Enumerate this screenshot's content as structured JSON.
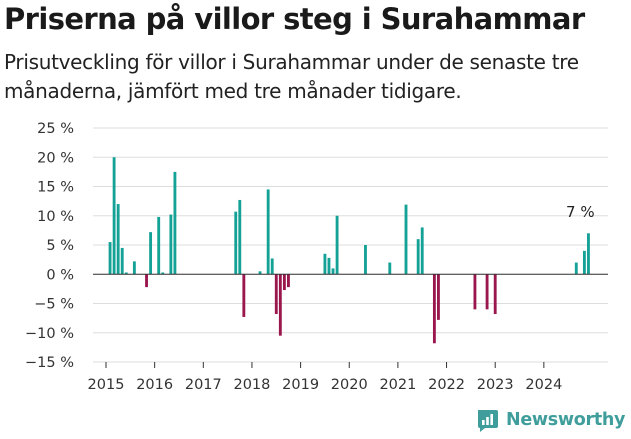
{
  "title": "Priserna på villor steg i Surahammar",
  "subtitle": "Prisutveckling för villor i Surahammar under de senaste tre månaderna, jämfört med tre månader tidigare.",
  "brand": {
    "name": "Newsworthy",
    "color": "#3f9e9b",
    "icon": "newsworthy-logo-icon"
  },
  "colors": {
    "positive": "#14a196",
    "negative": "#99174d",
    "grid": "#dddddd",
    "axis": "#333333"
  },
  "chart_data": {
    "type": "bar",
    "value_unit": "%",
    "ylim": [
      -15,
      25
    ],
    "y_ticks": [
      25,
      20,
      15,
      10,
      5,
      0,
      -5,
      -10,
      -15
    ],
    "y_tick_labels": [
      "25 %",
      "20 %",
      "15 %",
      "10 %",
      "5 %",
      "0 %",
      "−5 %",
      "−10 %",
      "−15 %"
    ],
    "x_tick_labels": [
      "2015",
      "2016",
      "2017",
      "2018",
      "2019",
      "2020",
      "2021",
      "2022",
      "2023",
      "2024"
    ],
    "grid": true,
    "annotation": {
      "text": "7 %",
      "at": "2024-10"
    },
    "x": [
      "2015-02",
      "2015-03",
      "2015-04",
      "2015-05",
      "2015-06",
      "2015-08",
      "2015-11",
      "2015-12",
      "2016-02",
      "2016-03",
      "2016-05",
      "2016-06",
      "2017-09",
      "2017-10",
      "2017-11",
      "2018-03",
      "2018-05",
      "2018-06",
      "2018-07",
      "2018-08",
      "2018-09",
      "2018-10",
      "2019-07",
      "2019-08",
      "2019-09",
      "2019-10",
      "2020-05",
      "2020-11",
      "2021-03",
      "2021-06",
      "2021-07",
      "2021-10",
      "2021-11",
      "2022-08",
      "2022-11",
      "2023-01",
      "2024-09",
      "2024-11",
      "2024-12"
    ],
    "values": [
      5.5,
      20.0,
      12.0,
      4.5,
      0.3,
      2.2,
      -2.2,
      7.2,
      9.8,
      0.3,
      10.2,
      17.5,
      10.7,
      12.7,
      -7.3,
      0.5,
      14.5,
      2.7,
      -6.8,
      -10.5,
      -2.7,
      -2.2,
      3.5,
      2.8,
      1.0,
      10.0,
      5.0,
      2.0,
      11.9,
      6.0,
      8.0,
      -11.8,
      -7.8,
      -6.0,
      -6.0,
      -6.8,
      2.0,
      4.0,
      7.0
    ]
  }
}
